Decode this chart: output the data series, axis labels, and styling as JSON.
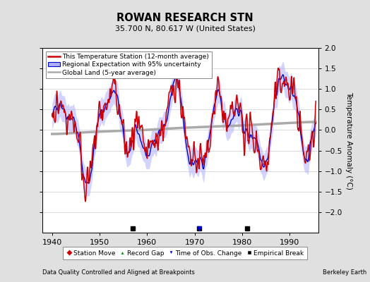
{
  "title": "ROWAN RESEARCH STN",
  "subtitle": "35.700 N, 80.617 W (United States)",
  "ylabel": "Temperature Anomaly (°C)",
  "xlabel_left": "Data Quality Controlled and Aligned at Breakpoints",
  "xlabel_right": "Berkeley Earth",
  "ylim": [
    -2.5,
    2.0
  ],
  "yticks": [
    -2.0,
    -1.5,
    -1.0,
    -0.5,
    0.0,
    0.5,
    1.0,
    1.5,
    2.0
  ],
  "xlim": [
    1938,
    1996
  ],
  "xticks": [
    1940,
    1950,
    1960,
    1970,
    1980,
    1990
  ],
  "station_color": "#CC0000",
  "regional_color": "#0000CC",
  "regional_fill_color": "#B0B0FF",
  "global_color": "#AAAAAA",
  "background_color": "#E0E0E0",
  "plot_bg_color": "#FFFFFF",
  "empirical_breaks": [
    1957,
    1971,
    1981
  ],
  "time_obs_changes": [
    1971
  ],
  "seed": 42
}
